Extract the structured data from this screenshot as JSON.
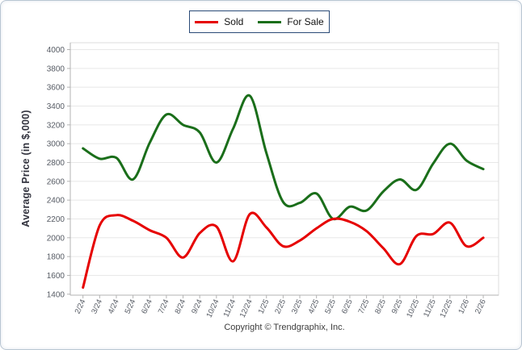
{
  "footer": {
    "copyright": "Copyright © Trendgraphix, Inc."
  },
  "colors": {
    "sold_line": "#e60000",
    "for_sale_line": "#1a6e1a",
    "legend_border": "#2a4a77",
    "gridline": "#e8e8e8",
    "axis_line": "#b3b3b3",
    "tick_text": "#555a63"
  },
  "chart_data": {
    "type": "line",
    "title": "",
    "smooth": true,
    "grid": true,
    "legend_position": "top-center",
    "ylabel": "Average Price (in $,000)",
    "xlabel": "",
    "ylim": [
      1400,
      4000
    ],
    "ytick_step": 200,
    "yticks": [
      4000,
      3800,
      3600,
      3400,
      3200,
      3000,
      2800,
      2600,
      2400,
      2200,
      2000,
      1800,
      1600,
      1400
    ],
    "categories": [
      "2/24",
      "3/24",
      "4/24",
      "5/24",
      "6/24",
      "7/24",
      "8/24",
      "9/24",
      "10/24",
      "11/24",
      "12/24",
      "1/25",
      "2/25",
      "3/25",
      "4/25",
      "5/25",
      "6/25",
      "7/25",
      "8/25",
      "9/25",
      "10/25",
      "11/25",
      "12/25",
      "1/26",
      "2/26"
    ],
    "series": [
      {
        "name": "Sold",
        "color": "#e60000",
        "values": [
          1470,
          2130,
          2240,
          2180,
          2080,
          2000,
          1790,
          2050,
          2120,
          1750,
          2250,
          2110,
          1910,
          1970,
          2100,
          2200,
          2170,
          2070,
          1890,
          1720,
          2020,
          2040,
          2160,
          1910,
          2000
        ]
      },
      {
        "name": "For Sale",
        "color": "#1a6e1a",
        "values": [
          2950,
          2840,
          2850,
          2620,
          3010,
          3310,
          3200,
          3120,
          2800,
          3160,
          3510,
          2900,
          2380,
          2370,
          2470,
          2200,
          2330,
          2290,
          2490,
          2620,
          2510,
          2790,
          3000,
          2820,
          2730
        ]
      }
    ]
  }
}
